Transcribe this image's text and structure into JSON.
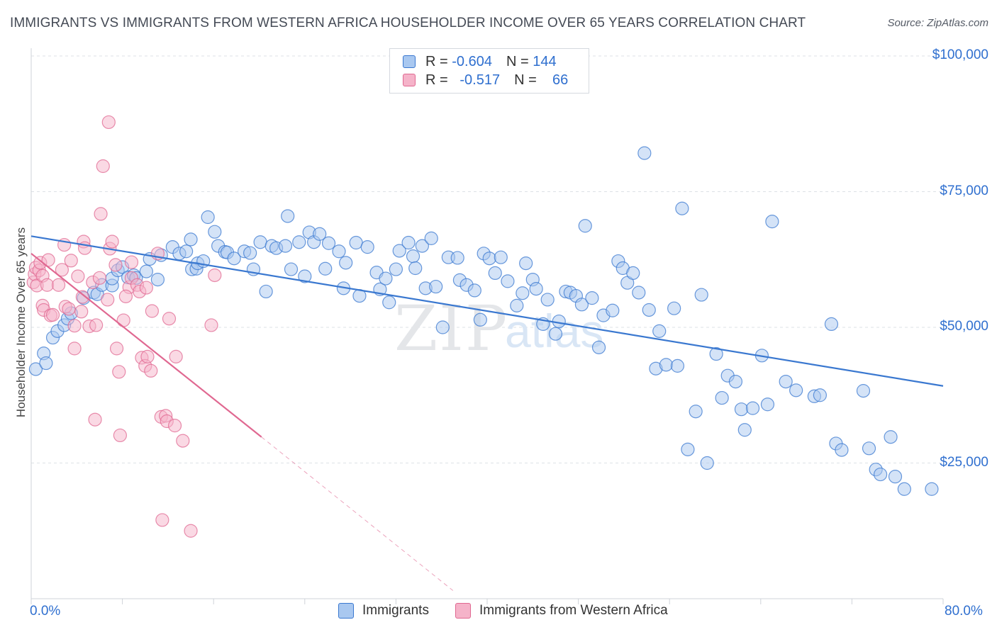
{
  "title": "IMMIGRANTS VS IMMIGRANTS FROM WESTERN AFRICA HOUSEHOLDER INCOME OVER 65 YEARS CORRELATION CHART",
  "source": "Source: ZipAtlas.com",
  "colors": {
    "blue": "#3a78d0",
    "blue_fill": "#a9c8f0",
    "pink": "#e06891",
    "pink_fill": "#f5b3c9",
    "tick_text": "#2f6fcf",
    "grid": "#dde1e6"
  },
  "legend": {
    "rows": [
      {
        "r_label": "R =",
        "r_value": "-0.604",
        "n_label": "N =",
        "n_value": "144"
      },
      {
        "r_label": "R =",
        "r_value": "-0.517",
        "n_label": "N =",
        "n_value": "66"
      }
    ]
  },
  "chart_data": {
    "type": "scatter",
    "title": "IMMIGRANTS VS IMMIGRANTS FROM WESTERN AFRICA HOUSEHOLDER INCOME OVER 65 YEARS CORRELATION CHART",
    "xlabel": "",
    "ylabel": "Householder Income Over 65 years",
    "xlim": [
      0,
      80
    ],
    "ylim": [
      0,
      100000
    ],
    "x_tick_labels": [
      "0.0%",
      "80.0%"
    ],
    "y_ticks": [
      25000,
      50000,
      75000,
      100000
    ],
    "y_tick_labels": [
      "$25,000",
      "$50,000",
      "$75,000",
      "$100,000"
    ],
    "grid": true,
    "legend_placement": "bottom",
    "series": [
      {
        "name": "Immigrants",
        "color": "#3a78d0",
        "trend": {
          "x": [
            0,
            80
          ],
          "y": [
            66800,
            39200
          ]
        },
        "points": [
          [
            0.4,
            42300
          ],
          [
            1.1,
            45200
          ],
          [
            1.3,
            43400
          ],
          [
            1.9,
            48100
          ],
          [
            2.3,
            49300
          ],
          [
            2.9,
            50400
          ],
          [
            3.2,
            51600
          ],
          [
            3.5,
            52600
          ],
          [
            4.6,
            55400
          ],
          [
            5.5,
            56400
          ],
          [
            5.8,
            56100
          ],
          [
            6.2,
            57800
          ],
          [
            7.1,
            57700
          ],
          [
            7.1,
            59000
          ],
          [
            7.6,
            60500
          ],
          [
            8.0,
            61100
          ],
          [
            8.5,
            59200
          ],
          [
            9.0,
            59600
          ],
          [
            9.2,
            59100
          ],
          [
            10.1,
            60300
          ],
          [
            10.4,
            62600
          ],
          [
            11.1,
            58800
          ],
          [
            11.4,
            63300
          ],
          [
            12.4,
            64800
          ],
          [
            13.0,
            63600
          ],
          [
            13.6,
            64000
          ],
          [
            14.0,
            66200
          ],
          [
            14.1,
            60700
          ],
          [
            14.5,
            60800
          ],
          [
            14.6,
            61800
          ],
          [
            15.1,
            62200
          ],
          [
            15.5,
            70300
          ],
          [
            16.1,
            67600
          ],
          [
            16.4,
            65000
          ],
          [
            17.0,
            63900
          ],
          [
            17.2,
            63800
          ],
          [
            17.8,
            62700
          ],
          [
            18.7,
            64000
          ],
          [
            19.2,
            63700
          ],
          [
            19.5,
            60700
          ],
          [
            20.1,
            65700
          ],
          [
            20.6,
            56600
          ],
          [
            21.1,
            65000
          ],
          [
            21.5,
            64600
          ],
          [
            22.3,
            65000
          ],
          [
            22.5,
            70500
          ],
          [
            22.8,
            60700
          ],
          [
            23.5,
            65700
          ],
          [
            24.0,
            59400
          ],
          [
            24.4,
            67500
          ],
          [
            24.8,
            65700
          ],
          [
            25.3,
            67200
          ],
          [
            25.8,
            60800
          ],
          [
            26.1,
            65500
          ],
          [
            27.0,
            64000
          ],
          [
            27.4,
            57200
          ],
          [
            27.6,
            61900
          ],
          [
            28.5,
            65600
          ],
          [
            28.8,
            55800
          ],
          [
            29.5,
            64800
          ],
          [
            30.3,
            60100
          ],
          [
            30.6,
            57000
          ],
          [
            31.1,
            59000
          ],
          [
            31.4,
            54600
          ],
          [
            32.0,
            60700
          ],
          [
            32.3,
            64100
          ],
          [
            33.1,
            65600
          ],
          [
            33.5,
            63100
          ],
          [
            33.7,
            60900
          ],
          [
            34.3,
            65000
          ],
          [
            34.6,
            57200
          ],
          [
            35.1,
            66400
          ],
          [
            35.5,
            57500
          ],
          [
            36.1,
            50000
          ],
          [
            36.6,
            62900
          ],
          [
            37.4,
            62800
          ],
          [
            37.6,
            58700
          ],
          [
            38.2,
            57800
          ],
          [
            38.9,
            56800
          ],
          [
            39.4,
            51400
          ],
          [
            39.7,
            63600
          ],
          [
            40.2,
            62700
          ],
          [
            40.7,
            60000
          ],
          [
            41.2,
            62900
          ],
          [
            41.8,
            58500
          ],
          [
            42.6,
            54000
          ],
          [
            43.1,
            56300
          ],
          [
            43.4,
            61800
          ],
          [
            44.0,
            58800
          ],
          [
            44.3,
            57100
          ],
          [
            44.9,
            50600
          ],
          [
            45.3,
            55100
          ],
          [
            46.0,
            48800
          ],
          [
            46.3,
            51100
          ],
          [
            46.9,
            56600
          ],
          [
            47.3,
            56400
          ],
          [
            47.8,
            55800
          ],
          [
            48.3,
            54200
          ],
          [
            48.6,
            68700
          ],
          [
            49.2,
            55400
          ],
          [
            49.8,
            46300
          ],
          [
            50.2,
            52200
          ],
          [
            51.0,
            53100
          ],
          [
            51.5,
            62200
          ],
          [
            51.9,
            60900
          ],
          [
            52.3,
            58200
          ],
          [
            52.8,
            60000
          ],
          [
            53.3,
            56400
          ],
          [
            53.8,
            82100
          ],
          [
            54.2,
            53200
          ],
          [
            54.8,
            42400
          ],
          [
            55.1,
            49300
          ],
          [
            55.7,
            43100
          ],
          [
            56.4,
            53500
          ],
          [
            56.7,
            42900
          ],
          [
            57.1,
            71900
          ],
          [
            57.6,
            27500
          ],
          [
            58.3,
            34500
          ],
          [
            58.8,
            56000
          ],
          [
            59.3,
            25000
          ],
          [
            60.1,
            45100
          ],
          [
            60.6,
            37000
          ],
          [
            61.1,
            41100
          ],
          [
            61.8,
            40000
          ],
          [
            62.3,
            34900
          ],
          [
            62.6,
            31100
          ],
          [
            63.3,
            35100
          ],
          [
            64.1,
            44800
          ],
          [
            64.6,
            35800
          ],
          [
            65.0,
            69500
          ],
          [
            66.2,
            40000
          ],
          [
            67.1,
            38400
          ],
          [
            68.7,
            37300
          ],
          [
            69.2,
            37500
          ],
          [
            70.2,
            50600
          ],
          [
            70.6,
            28600
          ],
          [
            71.1,
            27400
          ],
          [
            73.0,
            38300
          ],
          [
            73.5,
            27700
          ],
          [
            74.1,
            23800
          ],
          [
            74.5,
            22900
          ],
          [
            75.4,
            29800
          ],
          [
            75.8,
            22500
          ],
          [
            76.6,
            20200
          ],
          [
            79.0,
            20200
          ]
        ]
      },
      {
        "name": "Immigrants from Western Africa",
        "color": "#e06891",
        "trend": {
          "x": [
            0,
            20.2
          ],
          "y": [
            63600,
            29800
          ],
          "extension": {
            "x": [
              20.2,
              37
            ],
            "y": [
              29800,
              1500
            ]
          }
        },
        "points": [
          [
            0.2,
            58300
          ],
          [
            0.3,
            59800
          ],
          [
            0.4,
            61000
          ],
          [
            0.5,
            57700
          ],
          [
            0.7,
            60500
          ],
          [
            0.8,
            61900
          ],
          [
            1.0,
            59500
          ],
          [
            1.0,
            54000
          ],
          [
            1.1,
            53200
          ],
          [
            1.4,
            57800
          ],
          [
            1.5,
            62400
          ],
          [
            1.7,
            52200
          ],
          [
            1.9,
            52300
          ],
          [
            2.4,
            57800
          ],
          [
            2.7,
            60600
          ],
          [
            2.9,
            65200
          ],
          [
            3.0,
            53800
          ],
          [
            3.3,
            53400
          ],
          [
            3.5,
            62300
          ],
          [
            3.8,
            50300
          ],
          [
            3.8,
            46100
          ],
          [
            4.1,
            59400
          ],
          [
            4.4,
            52900
          ],
          [
            4.5,
            55600
          ],
          [
            4.6,
            65800
          ],
          [
            4.7,
            64600
          ],
          [
            5.1,
            50200
          ],
          [
            5.4,
            58300
          ],
          [
            5.6,
            33000
          ],
          [
            5.7,
            50400
          ],
          [
            6.0,
            59100
          ],
          [
            6.1,
            70900
          ],
          [
            6.3,
            79700
          ],
          [
            6.7,
            55100
          ],
          [
            6.8,
            87800
          ],
          [
            6.9,
            64500
          ],
          [
            7.1,
            65800
          ],
          [
            7.4,
            61500
          ],
          [
            7.5,
            46100
          ],
          [
            7.7,
            41800
          ],
          [
            7.8,
            30100
          ],
          [
            8.1,
            51300
          ],
          [
            8.6,
            57400
          ],
          [
            8.8,
            62000
          ],
          [
            8.8,
            59100
          ],
          [
            9.3,
            57800
          ],
          [
            9.5,
            56600
          ],
          [
            9.7,
            44400
          ],
          [
            10.0,
            42900
          ],
          [
            10.1,
            57300
          ],
          [
            10.2,
            44600
          ],
          [
            10.5,
            42000
          ],
          [
            10.6,
            53000
          ],
          [
            11.1,
            63600
          ],
          [
            11.4,
            33500
          ],
          [
            11.5,
            14500
          ],
          [
            11.8,
            33700
          ],
          [
            11.9,
            32700
          ],
          [
            12.1,
            51600
          ],
          [
            12.6,
            31900
          ],
          [
            12.7,
            44600
          ],
          [
            13.3,
            29100
          ],
          [
            14.0,
            12500
          ],
          [
            15.8,
            50400
          ],
          [
            16.1,
            59600
          ],
          [
            8.3,
            55700
          ]
        ]
      }
    ]
  },
  "bottom_legend": [
    {
      "label": "Immigrants"
    },
    {
      "label": "Immigrants from Western Africa"
    }
  ],
  "watermark": {
    "part1": "ZIP",
    "part2": "atlas"
  }
}
